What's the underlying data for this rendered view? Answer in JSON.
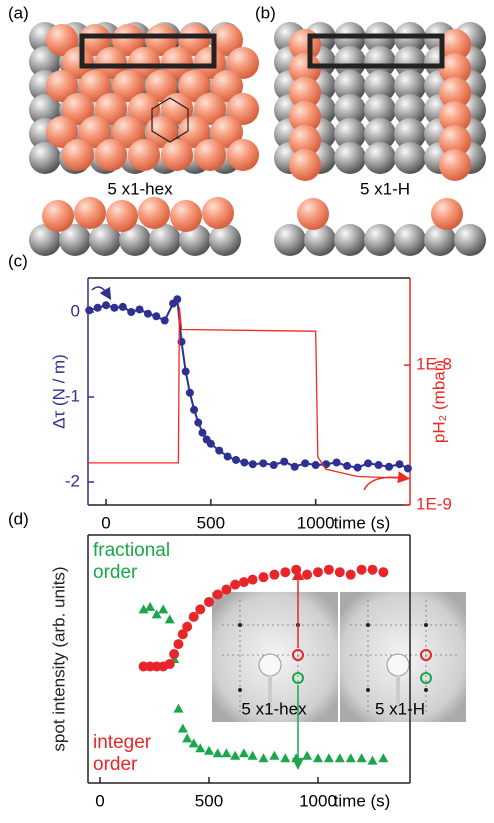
{
  "panels": [
    {
      "label": "(a)",
      "caption": "5 x1-hex"
    },
    {
      "label": "(b)",
      "caption": "5 x1-H"
    }
  ],
  "chart_data": [
    {
      "type": "line",
      "label": "(c)",
      "xlabel": "time (s)",
      "ylabel": "Δτ (N / m)",
      "y2label": "pH₂ (mbar)",
      "xlim": [
        -86,
        1450
      ],
      "ylim": [
        -2.27,
        0.4
      ],
      "y2lim": [
        1e-09,
        4.2e-08
      ],
      "y2log": true,
      "xticks": [
        0,
        500,
        1000
      ],
      "yticks": [
        0,
        -1,
        -2
      ],
      "y2ticks": [
        {
          "value": 1e-09,
          "label": "1E-9"
        },
        {
          "value": 1e-08,
          "label": "1E-8"
        }
      ],
      "series": [
        {
          "color": "#2e3192",
          "marker": "circle",
          "x": [
            -80,
            -40,
            0,
            40,
            80,
            120,
            160,
            200,
            240,
            280,
            320,
            340,
            360,
            380,
            400,
            420,
            440,
            460,
            480,
            500,
            540,
            580,
            620,
            660,
            700,
            750,
            800,
            850,
            900,
            950,
            1000,
            1050,
            1100,
            1150,
            1200,
            1250,
            1300,
            1350,
            1400,
            1440
          ],
          "values": [
            0.02,
            0.05,
            0.08,
            0.05,
            0.06,
            0.0,
            0.03,
            -0.02,
            -0.05,
            -0.1,
            0.1,
            0.15,
            -0.35,
            -0.7,
            -0.95,
            -1.15,
            -1.3,
            -1.42,
            -1.5,
            -1.55,
            -1.63,
            -1.7,
            -1.74,
            -1.77,
            -1.79,
            -1.78,
            -1.8,
            -1.76,
            -1.82,
            -1.78,
            -1.8,
            -1.79,
            -1.77,
            -1.81,
            -1.83,
            -1.78,
            -1.8,
            -1.82,
            -1.79,
            -1.84
          ]
        },
        {
          "color": "#ee2a24",
          "axis": "y2",
          "x": [
            -86,
            345,
            350,
            360,
            1000,
            1010,
            1050,
            1200,
            1450
          ],
          "values": [
            2e-09,
            2e-09,
            2.6e-08,
            1.8e-08,
            1.75e-08,
            2.2e-09,
            1.8e-09,
            1.6e-09,
            1.55e-09
          ]
        }
      ]
    },
    {
      "type": "scatter",
      "label": "(d)",
      "xlabel": "time (s)",
      "ylabel": "spot intensity (arb. units)",
      "xlim": [
        -55,
        1422
      ],
      "ylim": [
        0,
        1
      ],
      "xticks": [
        0,
        500,
        1000
      ],
      "annotations": [
        "5 x1-hex",
        "5 x1-H"
      ],
      "series": [
        {
          "name": "fractional order",
          "color": "#1aa64a",
          "marker": "triangle",
          "x": [
            200,
            230,
            260,
            290,
            320,
            340,
            360,
            380,
            400,
            430,
            460,
            500,
            540,
            580,
            620,
            660,
            700,
            750,
            800,
            850,
            900,
            950,
            1000,
            1050,
            1100,
            1150,
            1200,
            1250,
            1300
          ],
          "values": [
            0.7,
            0.71,
            0.68,
            0.7,
            0.66,
            0.5,
            0.3,
            0.22,
            0.18,
            0.16,
            0.14,
            0.13,
            0.12,
            0.12,
            0.11,
            0.12,
            0.11,
            0.1,
            0.11,
            0.1,
            0.1,
            0.11,
            0.1,
            0.1,
            0.1,
            0.1,
            0.1,
            0.09,
            0.1
          ]
        },
        {
          "name": "integer order",
          "color": "#e8262a",
          "marker": "circle",
          "x": [
            200,
            230,
            260,
            290,
            320,
            340,
            360,
            380,
            400,
            430,
            460,
            500,
            540,
            580,
            620,
            660,
            700,
            750,
            800,
            850,
            900,
            950,
            1000,
            1050,
            1100,
            1150,
            1200,
            1250,
            1300
          ],
          "values": [
            0.47,
            0.47,
            0.47,
            0.47,
            0.48,
            0.52,
            0.56,
            0.6,
            0.63,
            0.67,
            0.7,
            0.73,
            0.76,
            0.78,
            0.8,
            0.81,
            0.82,
            0.83,
            0.84,
            0.85,
            0.86,
            0.84,
            0.85,
            0.86,
            0.85,
            0.84,
            0.86,
            0.86,
            0.85
          ]
        }
      ]
    }
  ]
}
